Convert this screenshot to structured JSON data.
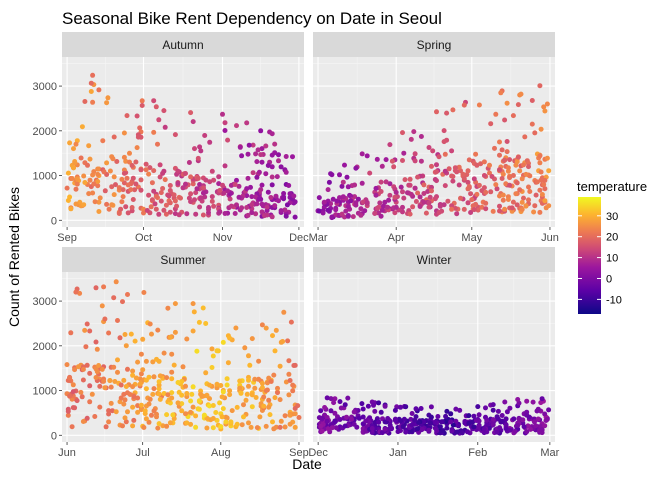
{
  "chart_data": {
    "type": "scatter",
    "title": "Seasonal Bike Rent Dependency on Date in Seoul",
    "xlabel": "Date",
    "ylabel": "Count of Rented Bikes",
    "ylim": [
      -150,
      3650
    ],
    "y_ticks": [
      0,
      1000,
      2000,
      3000
    ],
    "grid": true,
    "facet_layout": "2x2",
    "legend": {
      "title": "temperature",
      "position": "right",
      "ticks": [
        30,
        20,
        10,
        0,
        -10
      ],
      "range": [
        -17,
        39
      ],
      "colormap": "plasma"
    },
    "panels": [
      {
        "label": "Autumn",
        "xlim": [
          -2,
          93
        ],
        "x_ticks": [
          {
            "label": "Sep",
            "x": 0
          },
          {
            "label": "Oct",
            "x": 30
          },
          {
            "label": "Nov",
            "x": 61
          },
          {
            "label": "Dec",
            "x": 91
          }
        ],
        "trend": [
          [
            0,
            1000
          ],
          [
            15,
            1050
          ],
          [
            30,
            920
          ],
          [
            45,
            800
          ],
          [
            60,
            650
          ],
          [
            75,
            520
          ],
          [
            90,
            450
          ]
        ],
        "temp_trend": [
          [
            0,
            26
          ],
          [
            30,
            19
          ],
          [
            60,
            11
          ],
          [
            90,
            3
          ]
        ],
        "max_outline": [
          [
            0,
            2100
          ],
          [
            10,
            3300
          ],
          [
            20,
            2800
          ],
          [
            30,
            2700
          ],
          [
            45,
            2600
          ],
          [
            60,
            2400
          ],
          [
            75,
            2100
          ],
          [
            90,
            1700
          ]
        ]
      },
      {
        "label": "Spring",
        "xlim": [
          -2,
          94
        ],
        "x_ticks": [
          {
            "label": "Mar",
            "x": 0
          },
          {
            "label": "Apr",
            "x": 31
          },
          {
            "label": "May",
            "x": 61
          },
          {
            "label": "Jun",
            "x": 92
          }
        ],
        "trend": [
          [
            0,
            300
          ],
          [
            15,
            450
          ],
          [
            30,
            650
          ],
          [
            45,
            800
          ],
          [
            60,
            950
          ],
          [
            75,
            1050
          ],
          [
            92,
            1150
          ]
        ],
        "temp_trend": [
          [
            0,
            3
          ],
          [
            30,
            12
          ],
          [
            60,
            17
          ],
          [
            92,
            24
          ]
        ],
        "max_outline": [
          [
            0,
            900
          ],
          [
            15,
            1500
          ],
          [
            30,
            1900
          ],
          [
            45,
            2400
          ],
          [
            60,
            2700
          ],
          [
            75,
            3000
          ],
          [
            92,
            3300
          ]
        ]
      },
      {
        "label": "Summer",
        "xlim": [
          -2,
          94
        ],
        "x_ticks": [
          {
            "label": "Jun",
            "x": 0
          },
          {
            "label": "Jul",
            "x": 30
          },
          {
            "label": "Aug",
            "x": 61
          },
          {
            "label": "Sep",
            "x": 92
          }
        ],
        "trend": [
          [
            0,
            1250
          ],
          [
            15,
            1200
          ],
          [
            30,
            1050
          ],
          [
            45,
            950
          ],
          [
            60,
            900
          ],
          [
            75,
            950
          ],
          [
            92,
            850
          ]
        ],
        "temp_trend": [
          [
            0,
            21
          ],
          [
            30,
            26
          ],
          [
            55,
            32
          ],
          [
            75,
            29
          ],
          [
            92,
            23
          ]
        ],
        "max_outline": [
          [
            0,
            3300
          ],
          [
            20,
            3500
          ],
          [
            40,
            3200
          ],
          [
            60,
            2700
          ],
          [
            75,
            2700
          ],
          [
            92,
            2800
          ]
        ]
      },
      {
        "label": "Winter",
        "xlim": [
          -2,
          92
        ],
        "x_ticks": [
          {
            "label": "Dec",
            "x": 0
          },
          {
            "label": "Jan",
            "x": 31
          },
          {
            "label": "Feb",
            "x": 62
          },
          {
            "label": "Mar",
            "x": 90
          }
        ],
        "trend": [
          [
            0,
            350
          ],
          [
            30,
            270
          ],
          [
            60,
            240
          ],
          [
            90,
            330
          ]
        ],
        "temp_trend": [
          [
            0,
            0
          ],
          [
            25,
            -5
          ],
          [
            50,
            -9
          ],
          [
            70,
            -4
          ],
          [
            90,
            2
          ]
        ],
        "max_outline": [
          [
            0,
            950
          ],
          [
            30,
            700
          ],
          [
            60,
            650
          ],
          [
            90,
            950
          ]
        ]
      }
    ]
  }
}
